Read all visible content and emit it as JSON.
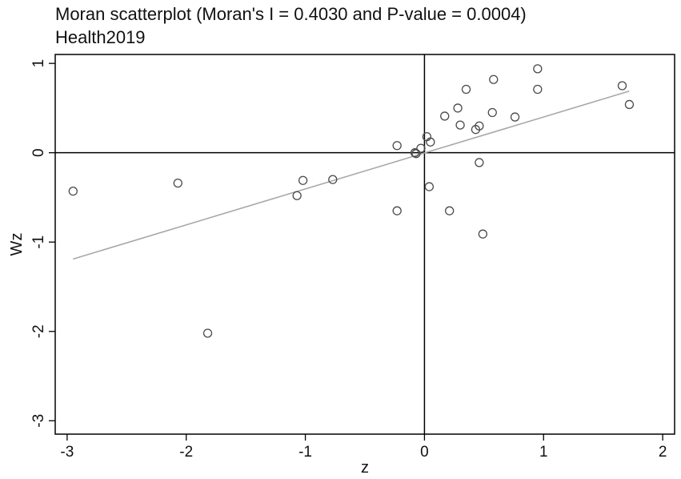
{
  "chart_data": {
    "type": "scatter",
    "title": "Moran scatterplot (Moran's I = 0.4030 and P-value = 0.0004)",
    "subtitle": "Health2019",
    "xlabel": "z",
    "ylabel": "Wz",
    "xlim": [
      -3.1,
      2.1
    ],
    "ylim": [
      -3.15,
      1.1
    ],
    "x_ticks": [
      -3,
      -2,
      -1,
      0,
      1,
      2
    ],
    "y_ticks": [
      -3,
      -2,
      -1,
      0,
      1
    ],
    "x_tick_labels": [
      "-3",
      "-2",
      "-1",
      "0",
      "1",
      "2"
    ],
    "y_tick_labels": [
      "-3",
      "-2",
      "-1",
      "0",
      "1"
    ],
    "reference_lines": {
      "x": 0,
      "y": 0
    },
    "fit_line": {
      "x": [
        -2.95,
        1.72
      ],
      "y": [
        -1.19,
        0.69
      ]
    },
    "grid": false,
    "points": [
      {
        "x": -2.95,
        "y": -0.43
      },
      {
        "x": -2.07,
        "y": -0.34
      },
      {
        "x": -1.82,
        "y": -2.02
      },
      {
        "x": -1.07,
        "y": -0.48
      },
      {
        "x": -1.02,
        "y": -0.31
      },
      {
        "x": -0.77,
        "y": -0.3
      },
      {
        "x": -0.23,
        "y": 0.08
      },
      {
        "x": -0.23,
        "y": -0.65
      },
      {
        "x": -0.08,
        "y": 0.0
      },
      {
        "x": -0.07,
        "y": -0.01
      },
      {
        "x": -0.03,
        "y": 0.05
      },
      {
        "x": 0.02,
        "y": 0.18
      },
      {
        "x": 0.05,
        "y": 0.12
      },
      {
        "x": 0.04,
        "y": -0.38
      },
      {
        "x": 0.17,
        "y": 0.41
      },
      {
        "x": 0.21,
        "y": -0.65
      },
      {
        "x": 0.28,
        "y": 0.5
      },
      {
        "x": 0.3,
        "y": 0.31
      },
      {
        "x": 0.35,
        "y": 0.71
      },
      {
        "x": 0.43,
        "y": 0.26
      },
      {
        "x": 0.46,
        "y": 0.3
      },
      {
        "x": 0.46,
        "y": -0.11
      },
      {
        "x": 0.49,
        "y": -0.91
      },
      {
        "x": 0.57,
        "y": 0.45
      },
      {
        "x": 0.58,
        "y": 0.82
      },
      {
        "x": 0.76,
        "y": 0.4
      },
      {
        "x": 0.95,
        "y": 0.94
      },
      {
        "x": 0.95,
        "y": 0.71
      },
      {
        "x": 1.66,
        "y": 0.75
      },
      {
        "x": 1.72,
        "y": 0.54
      }
    ],
    "colors": {
      "axis": "#000000",
      "marker": "#4a4a4a",
      "fit_line": "#a8a8a8"
    }
  }
}
